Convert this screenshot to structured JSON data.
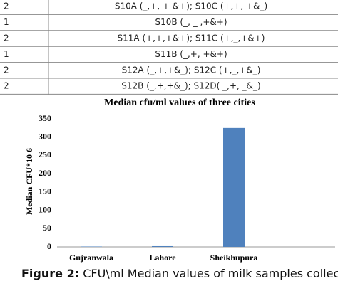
{
  "table": {
    "rows": [
      [
        "2",
        "S10A (_,+, + &+); S10C (+,+, +&_)"
      ],
      [
        "1",
        "S10B (_, _ ,+&+)"
      ],
      [
        "2",
        "S11A (+,+,+&+); S11C (+,_,+&+)"
      ],
      [
        "1",
        "S11B (_,+, +&+)"
      ],
      [
        "2",
        "S12A (_,+,+&_); S12C (+,_,+&_)"
      ],
      [
        "2",
        "S12B (_,+,+&_); S12D( _,+, _&_)"
      ]
    ]
  },
  "chart_data": {
    "type": "bar",
    "title": "Median cfu/ml values of three cities",
    "y_label": "Median CFU*10 6",
    "categories": [
      "Gujranwala",
      "Lahore",
      "Sheikhupura"
    ],
    "values": [
      1,
      2,
      325
    ],
    "color": "#4f81bd",
    "ylim": [
      0,
      350
    ],
    "yticks": [
      0,
      50,
      100,
      150,
      200,
      250,
      300,
      350
    ],
    "grid": false
  },
  "caption": {
    "label": "Figure 2:",
    "text": "CFU\\ml Median values of milk samples collected"
  }
}
